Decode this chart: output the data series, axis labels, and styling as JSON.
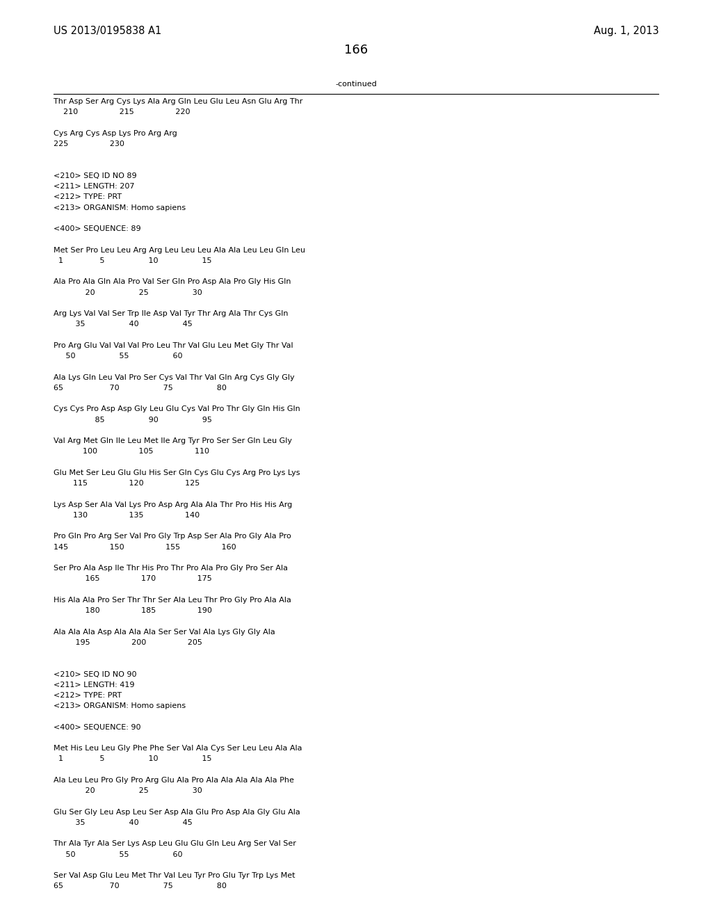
{
  "background_color": "#ffffff",
  "top_left_text": "US 2013/0195838 A1",
  "top_right_text": "Aug. 1, 2013",
  "page_number": "166",
  "continued_label": "-continued",
  "font_family": "Courier New",
  "font_size": 8.0,
  "header_font_size": 10.5,
  "page_num_font_size": 13,
  "lines": [
    "Thr Asp Ser Arg Cys Lys Ala Arg Gln Leu Glu Leu Asn Glu Arg Thr",
    "    210                 215                 220",
    "",
    "Cys Arg Cys Asp Lys Pro Arg Arg",
    "225                 230",
    "",
    "",
    "<210> SEQ ID NO 89",
    "<211> LENGTH: 207",
    "<212> TYPE: PRT",
    "<213> ORGANISM: Homo sapiens",
    "",
    "<400> SEQUENCE: 89",
    "",
    "Met Ser Pro Leu Leu Arg Arg Leu Leu Leu Ala Ala Leu Leu Gln Leu",
    "  1               5                  10                  15",
    "",
    "Ala Pro Ala Gln Ala Pro Val Ser Gln Pro Asp Ala Pro Gly His Gln",
    "             20                  25                  30",
    "",
    "Arg Lys Val Val Ser Trp Ile Asp Val Tyr Thr Arg Ala Thr Cys Gln",
    "         35                  40                  45",
    "",
    "Pro Arg Glu Val Val Val Pro Leu Thr Val Glu Leu Met Gly Thr Val",
    "     50                  55                  60",
    "",
    "Ala Lys Gln Leu Val Pro Ser Cys Val Thr Val Gln Arg Cys Gly Gly",
    "65                   70                  75                  80",
    "",
    "Cys Cys Pro Asp Asp Gly Leu Glu Cys Val Pro Thr Gly Gln His Gln",
    "                 85                  90                  95",
    "",
    "Val Arg Met Gln Ile Leu Met Ile Arg Tyr Pro Ser Ser Gln Leu Gly",
    "            100                 105                 110",
    "",
    "Glu Met Ser Leu Glu Glu His Ser Gln Cys Glu Cys Arg Pro Lys Lys",
    "        115                 120                 125",
    "",
    "Lys Asp Ser Ala Val Lys Pro Asp Arg Ala Ala Thr Pro His His Arg",
    "        130                 135                 140",
    "",
    "Pro Gln Pro Arg Ser Val Pro Gly Trp Asp Ser Ala Pro Gly Ala Pro",
    "145                 150                 155                 160",
    "",
    "Ser Pro Ala Asp Ile Thr His Pro Thr Pro Ala Pro Gly Pro Ser Ala",
    "             165                 170                 175",
    "",
    "His Ala Ala Pro Ser Thr Thr Ser Ala Leu Thr Pro Gly Pro Ala Ala",
    "             180                 185                 190",
    "",
    "Ala Ala Ala Asp Ala Ala Ala Ser Ser Val Ala Lys Gly Gly Ala",
    "         195                 200                 205",
    "",
    "",
    "<210> SEQ ID NO 90",
    "<211> LENGTH: 419",
    "<212> TYPE: PRT",
    "<213> ORGANISM: Homo sapiens",
    "",
    "<400> SEQUENCE: 90",
    "",
    "Met His Leu Leu Gly Phe Phe Ser Val Ala Cys Ser Leu Leu Ala Ala",
    "  1               5                  10                  15",
    "",
    "Ala Leu Leu Pro Gly Pro Arg Glu Ala Pro Ala Ala Ala Ala Ala Phe",
    "             20                  25                  30",
    "",
    "Glu Ser Gly Leu Asp Leu Ser Asp Ala Glu Pro Asp Ala Gly Glu Ala",
    "         35                  40                  45",
    "",
    "Thr Ala Tyr Ala Ser Lys Asp Leu Glu Glu Gln Leu Arg Ser Val Ser",
    "     50                  55                  60",
    "",
    "Ser Val Asp Glu Leu Met Thr Val Leu Tyr Pro Glu Tyr Trp Lys Met",
    "65                   70                  75                  80"
  ]
}
